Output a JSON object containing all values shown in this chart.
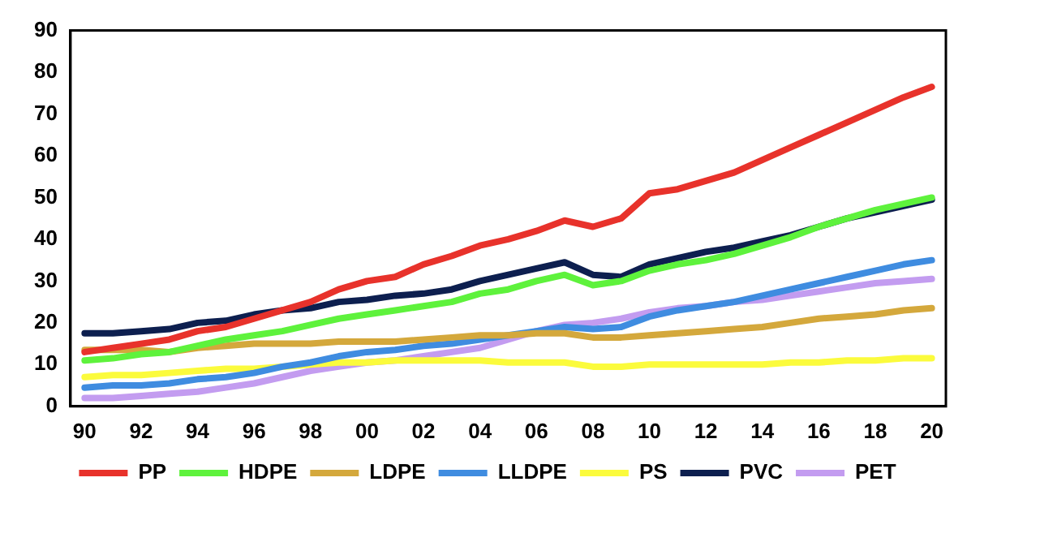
{
  "chart_data": {
    "type": "line",
    "categories": [
      "90",
      null,
      "92",
      null,
      "94",
      null,
      "96",
      null,
      "98",
      null,
      "00",
      null,
      "02",
      null,
      "04",
      null,
      "06",
      null,
      "08",
      null,
      "10",
      null,
      "12",
      null,
      "14",
      null,
      "16",
      null,
      "18",
      null,
      "20"
    ],
    "series": [
      {
        "name": "PP",
        "color": "#e8322b",
        "values": [
          13,
          14,
          15,
          16,
          18,
          19,
          21,
          23,
          25,
          28,
          30,
          31,
          34,
          36,
          38.5,
          40,
          42,
          44.5,
          43,
          45,
          51,
          52,
          54,
          56,
          59,
          62,
          65,
          68,
          71,
          74,
          76.5
        ]
      },
      {
        "name": "HDPE",
        "color": "#5ef23c",
        "values": [
          11,
          11.5,
          12.5,
          13,
          14.5,
          16,
          17,
          18,
          19.5,
          21,
          22,
          23,
          24,
          25,
          27,
          28,
          30,
          31.5,
          29,
          30,
          32.5,
          34,
          35,
          36.5,
          38.5,
          40.5,
          43,
          45,
          47,
          48.5,
          50
        ]
      },
      {
        "name": "LDPE",
        "color": "#d4a83c",
        "values": [
          13.5,
          13.5,
          13.5,
          13,
          14,
          14.5,
          15,
          15,
          15,
          15.5,
          15.5,
          15.5,
          16,
          16.5,
          17,
          17,
          17.5,
          17.5,
          16.5,
          16.5,
          17,
          17.5,
          18,
          18.5,
          19,
          20,
          21,
          21.5,
          22,
          23,
          23.5
        ]
      },
      {
        "name": "LLDPE",
        "color": "#3f8ce0",
        "values": [
          4.5,
          5,
          5,
          5.5,
          6.5,
          7,
          8,
          9.5,
          10.5,
          12,
          13,
          13.5,
          14.5,
          15,
          16,
          17,
          18,
          19,
          18.5,
          19,
          21.5,
          23,
          24,
          25,
          26.5,
          28,
          29.5,
          31,
          32.5,
          34,
          35
        ]
      },
      {
        "name": "PS",
        "color": "#fbfb3c",
        "values": [
          7,
          7.5,
          7.5,
          8,
          8.5,
          9,
          9,
          9.5,
          10,
          10.5,
          10.5,
          11,
          11,
          11,
          11,
          10.5,
          10.5,
          10.5,
          9.5,
          9.5,
          10,
          10,
          10,
          10,
          10,
          10.5,
          10.5,
          11,
          11,
          11.5,
          11.5
        ]
      },
      {
        "name": "PVC",
        "color": "#0d1f4f",
        "values": [
          17.5,
          17.5,
          18,
          18.5,
          20,
          20.5,
          22,
          23,
          23.5,
          25,
          25.5,
          26.5,
          27,
          28,
          30,
          31.5,
          33,
          34.5,
          31.5,
          31,
          34,
          35.5,
          37,
          38,
          39.5,
          41,
          43,
          45,
          46.5,
          48,
          49.5
        ]
      },
      {
        "name": "PET",
        "color": "#c39cf0",
        "values": [
          2,
          2,
          2.5,
          3,
          3.5,
          4.5,
          5.5,
          7,
          8.5,
          9.5,
          10.5,
          11,
          12,
          13,
          14,
          16,
          18,
          19.5,
          20,
          21,
          22.5,
          23.5,
          24,
          25,
          25.5,
          26.5,
          27.5,
          28.5,
          29.5,
          30,
          30.5
        ]
      }
    ],
    "ylim": [
      0,
      90
    ],
    "yticks": [
      0,
      10,
      20,
      30,
      40,
      50,
      60,
      70,
      80,
      90
    ],
    "grid": false,
    "legend": "bottom",
    "marker": "none",
    "line_style": "solid"
  }
}
